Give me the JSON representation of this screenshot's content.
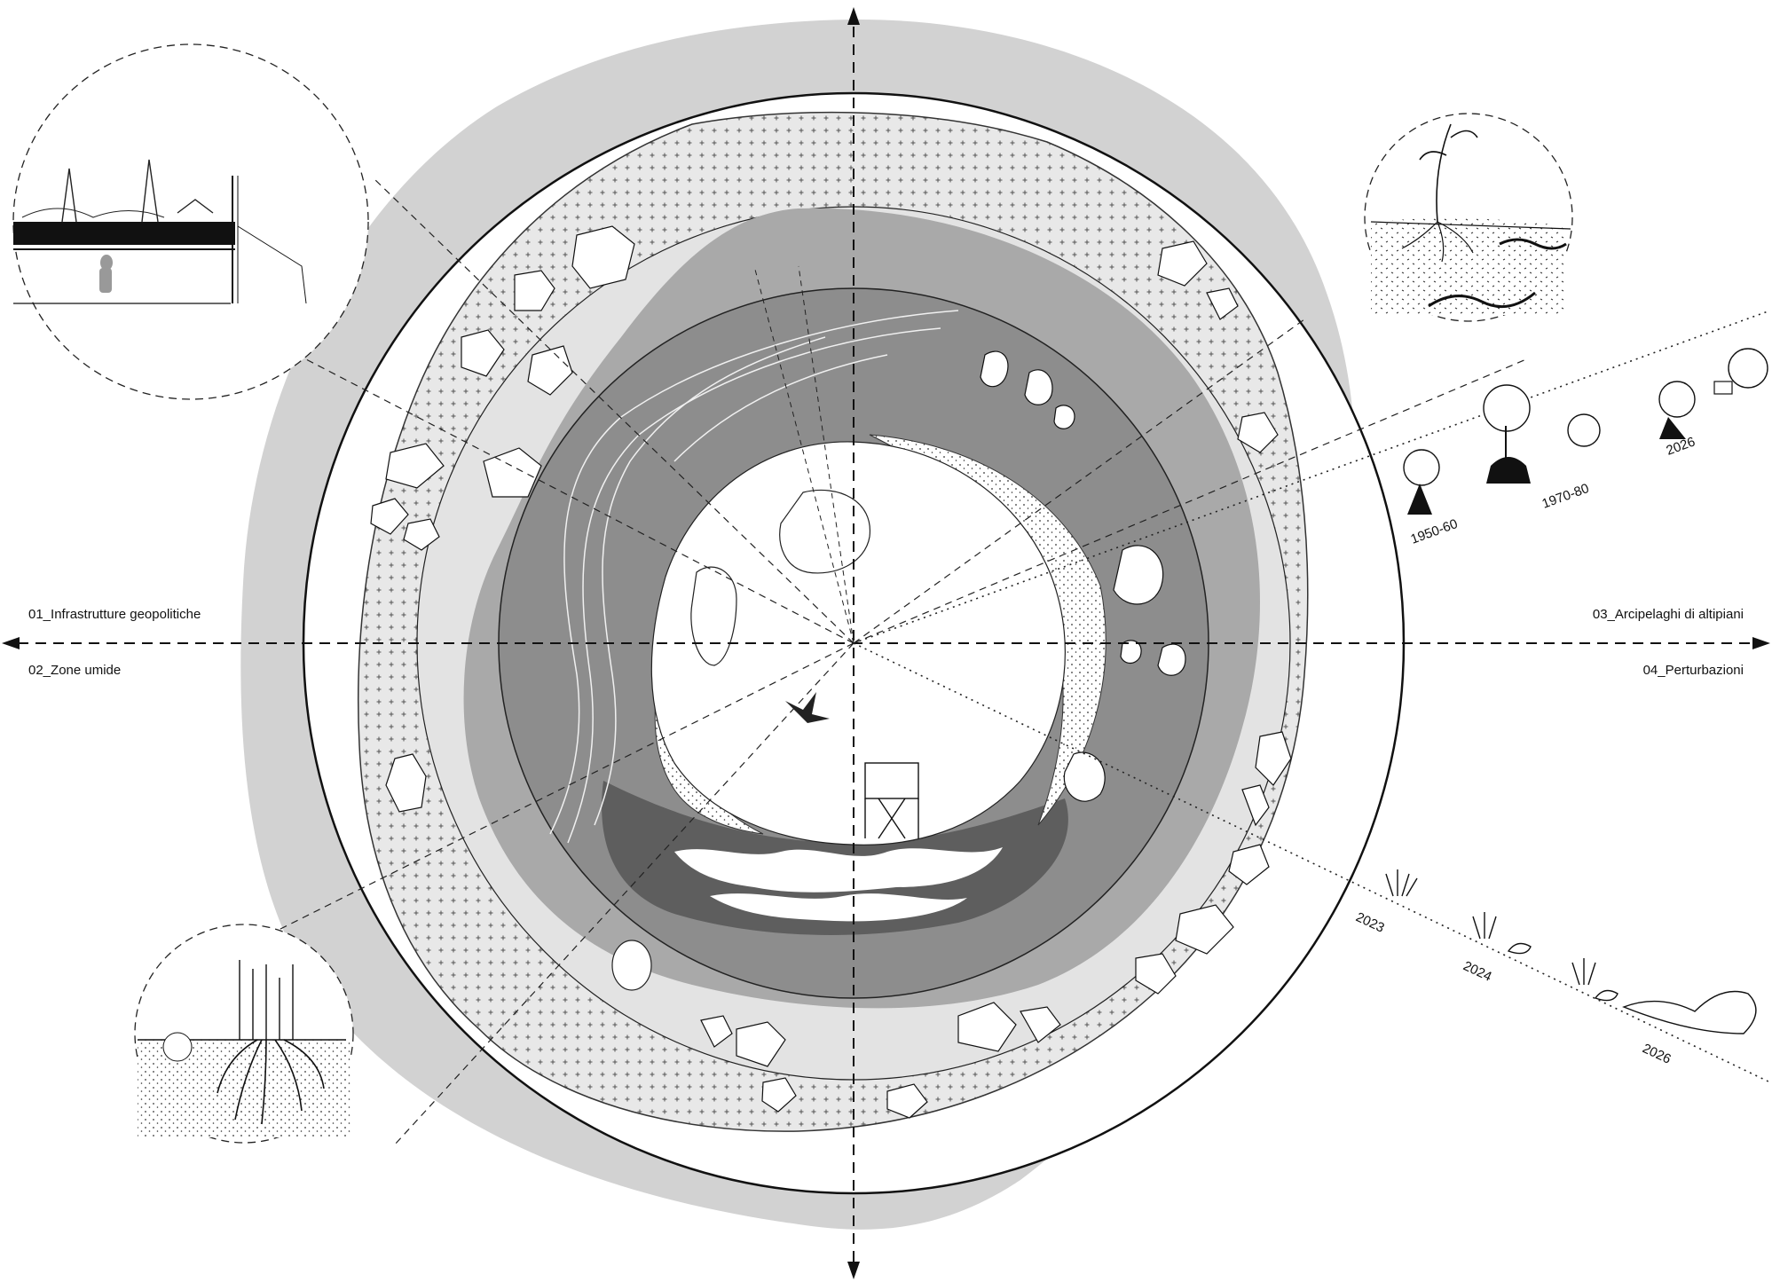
{
  "labels": {
    "left_top": "01_Infrastrutture geopolitiche",
    "left_bottom": "02_Zone umide",
    "right_top": "03_Arcipelaghi di altipiani",
    "right_bottom": "04_Perturbazioni"
  },
  "timeline_upper": [
    "1950-60",
    "1970-80",
    "2026"
  ],
  "timeline_lower": [
    "2023",
    "2024",
    "2026"
  ],
  "colors": {
    "outer_halo": "#d2d2d2",
    "ring_band": "#e6e6e6",
    "mid_gray": "#a9a9a9",
    "dark_gray": "#8a8a8a",
    "inner_white": "#ffffff",
    "line": "#111111"
  }
}
